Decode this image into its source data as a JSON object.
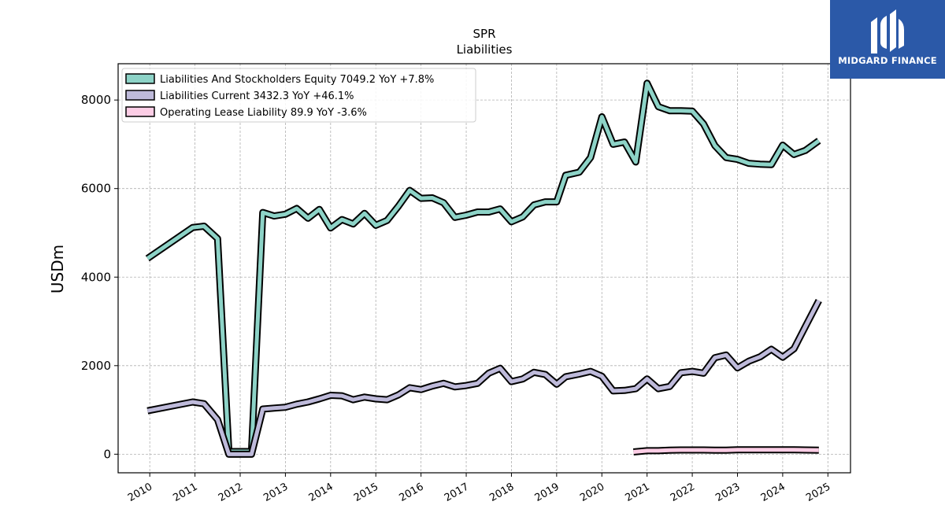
{
  "brand": {
    "name": "MIDGARD FINANCE",
    "bg": "#2b59a8"
  },
  "chart_data": {
    "type": "line",
    "title": "SPR",
    "subtitle": "Liabilities",
    "xlabel": "",
    "ylabel": "USDm",
    "xlim": [
      2009.3,
      2025.5
    ],
    "ylim": [
      -420,
      8820
    ],
    "yticks": [
      0,
      2000,
      4000,
      6000,
      8000
    ],
    "xticks": [
      2010,
      2011,
      2012,
      2013,
      2014,
      2015,
      2016,
      2017,
      2018,
      2019,
      2020,
      2021,
      2022,
      2023,
      2024,
      2025
    ],
    "grid": true,
    "legend_position": "top-left",
    "series": [
      {
        "name": "Liabilities And Stockholders Equity",
        "legend": "Liabilities And Stockholders Equity  7049.2 YoY +7.8%",
        "color": "#8dd3c7",
        "x": [
          2009.95,
          2010.95,
          2011.2,
          2011.5,
          2011.75,
          2012.25,
          2012.5,
          2012.75,
          2013.0,
          2013.25,
          2013.5,
          2013.75,
          2014.0,
          2014.25,
          2014.5,
          2014.75,
          2015.0,
          2015.25,
          2015.5,
          2015.75,
          2016.0,
          2016.25,
          2016.5,
          2016.75,
          2017.0,
          2017.25,
          2017.5,
          2017.75,
          2018.0,
          2018.25,
          2018.5,
          2018.75,
          2019.0,
          2019.2,
          2019.5,
          2019.75,
          2020.0,
          2020.25,
          2020.5,
          2020.75,
          2021.0,
          2021.25,
          2021.5,
          2021.75,
          2022.0,
          2022.25,
          2022.5,
          2022.75,
          2023.0,
          2023.25,
          2023.5,
          2023.75,
          2024.0,
          2024.25,
          2024.5,
          2024.8
        ],
        "values": [
          4420,
          5120,
          5150,
          4870,
          60,
          60,
          5460,
          5380,
          5420,
          5550,
          5330,
          5530,
          5110,
          5300,
          5200,
          5440,
          5170,
          5280,
          5600,
          5960,
          5780,
          5790,
          5680,
          5350,
          5400,
          5470,
          5470,
          5540,
          5250,
          5360,
          5630,
          5700,
          5700,
          6300,
          6370,
          6700,
          7620,
          7000,
          7050,
          6600,
          8380,
          7850,
          7760,
          7760,
          7750,
          7460,
          6970,
          6700,
          6660,
          6570,
          6550,
          6540,
          6980,
          6770,
          6860,
          7080
        ]
      },
      {
        "name": "Liabilities Current",
        "legend": "Liabilities Current  3432.3 YoY +46.1%",
        "color": "#bebada",
        "x": [
          2009.95,
          2010.95,
          2011.2,
          2011.5,
          2011.75,
          2012.25,
          2012.5,
          2012.75,
          2013.0,
          2013.25,
          2013.5,
          2013.75,
          2014.0,
          2014.25,
          2014.5,
          2014.75,
          2015.0,
          2015.25,
          2015.5,
          2015.75,
          2016.0,
          2016.25,
          2016.5,
          2016.75,
          2017.0,
          2017.25,
          2017.5,
          2017.75,
          2018.0,
          2018.25,
          2018.5,
          2018.75,
          2019.0,
          2019.2,
          2019.5,
          2019.75,
          2020.0,
          2020.25,
          2020.5,
          2020.75,
          2021.0,
          2021.25,
          2021.5,
          2021.75,
          2022.0,
          2022.25,
          2022.5,
          2022.75,
          2023.0,
          2023.25,
          2023.5,
          2023.75,
          2024.0,
          2024.25,
          2024.5,
          2024.8
        ],
        "values": [
          980,
          1180,
          1140,
          780,
          0,
          0,
          1020,
          1040,
          1060,
          1130,
          1180,
          1250,
          1330,
          1320,
          1230,
          1290,
          1250,
          1230,
          1340,
          1500,
          1460,
          1540,
          1600,
          1520,
          1550,
          1600,
          1830,
          1940,
          1640,
          1700,
          1850,
          1800,
          1580,
          1750,
          1810,
          1870,
          1760,
          1430,
          1440,
          1480,
          1700,
          1480,
          1530,
          1840,
          1870,
          1830,
          2180,
          2240,
          1950,
          2100,
          2200,
          2370,
          2190,
          2380,
          2880,
          3470
        ]
      },
      {
        "name": "Operating Lease Liability",
        "legend": "Operating Lease Liability  89.9 YoY -3.6%",
        "color": "#fccde5",
        "x": [
          2020.7,
          2021.0,
          2021.25,
          2021.5,
          2021.75,
          2022.0,
          2022.25,
          2022.5,
          2022.75,
          2023.0,
          2023.25,
          2023.5,
          2023.75,
          2024.0,
          2024.25,
          2024.5,
          2024.8
        ],
        "values": [
          50,
          80,
          80,
          90,
          95,
          95,
          95,
          92,
          92,
          100,
          100,
          100,
          100,
          100,
          100,
          95,
          92
        ]
      }
    ]
  }
}
